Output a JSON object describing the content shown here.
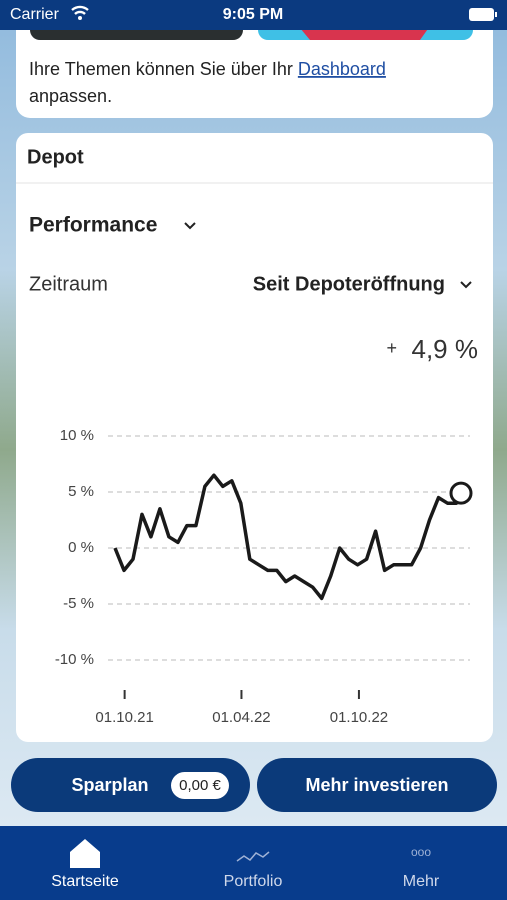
{
  "status": {
    "carrier": "Carrier",
    "time": "9:05 PM"
  },
  "topics": {
    "text": "Ihre Themen können Sie über Ihr",
    "link": "Dashboard",
    "text_end": "anpassen."
  },
  "depot": {
    "title": "Depot",
    "view": "Performance",
    "period_label": "Zeitraum",
    "period": "Seit Depoteröffnung",
    "sign": "+",
    "performance": "4,9 %"
  },
  "chart_data": {
    "type": "line",
    "color": "#1a1a1a",
    "grid": true,
    "x": [
      "16.09.21",
      "30.09.21",
      "14.10.21",
      "28.10.21",
      "11.11.21",
      "25.11.21",
      "09.12.21",
      "23.12.21",
      "06.01.22",
      "20.01.22",
      "03.02.22",
      "17.02.22",
      "03.03.22",
      "17.03.22",
      "31.03.22",
      "14.04.22",
      "28.04.22",
      "12.05.22",
      "26.05.22",
      "09.06.22",
      "23.06.22",
      "07.07.22",
      "21.07.22",
      "04.08.22",
      "18.08.22",
      "01.09.22",
      "15.09.22",
      "29.09.22",
      "13.10.22",
      "27.10.22",
      "10.11.22",
      "24.11.22",
      "08.12.22",
      "22.12.22",
      "05.01.23",
      "19.01.23",
      "02.02.23",
      "16.02.23",
      "02.03.23",
      "09.03.23"
    ],
    "values": [
      0,
      -2,
      -1,
      3,
      1,
      3.5,
      1,
      0.5,
      2,
      2,
      5.5,
      6.5,
      5.5,
      6,
      4,
      -1,
      -1.5,
      -2,
      -2,
      -3,
      -2.5,
      -3,
      -3.5,
      -4.5,
      -2.5,
      0,
      -1,
      -1.5,
      -1,
      1.5,
      -2,
      -1.5,
      -1.5,
      -1.5,
      0,
      2.5,
      4.5,
      4,
      4,
      4.9
    ],
    "xlim": [
      "16.09.21",
      "09.03.23"
    ],
    "xticks": [
      "01.10.21",
      "01.04.22",
      "01.10.22"
    ],
    "ylim": [
      -10,
      10
    ],
    "yticks": [
      {
        "value": -10,
        "label": "-10 %"
      },
      {
        "value": -5,
        "label": "-5 %"
      },
      {
        "value": 0,
        "label": "0 %"
      },
      {
        "value": 5,
        "label": "5 %"
      },
      {
        "value": 10,
        "label": "10 %"
      }
    ]
  },
  "actions": {
    "savings_plan": "Sparplan",
    "savings_amount": "0,00 €",
    "invest": "Mehr investieren"
  },
  "tabs": [
    "Startseite",
    "Portfolio",
    "Mehr"
  ]
}
